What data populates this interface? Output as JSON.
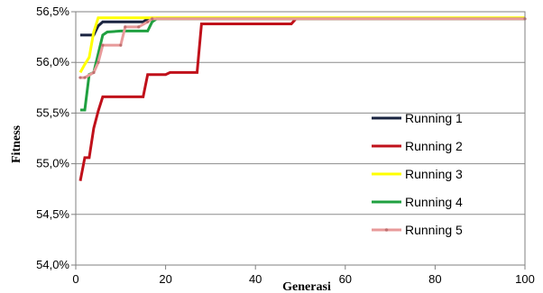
{
  "chart_data": {
    "type": "line",
    "xlabel": "Generasi",
    "ylabel": "Fitness",
    "xlim": [
      0,
      100
    ],
    "ylim": [
      54.0,
      56.5
    ],
    "x_ticks": [
      "0",
      "20",
      "40",
      "60",
      "80",
      "100"
    ],
    "y_ticks": [
      "54,0%",
      "54,5%",
      "55,0%",
      "55,5%",
      "56,0%",
      "56,5%"
    ],
    "grid": "horizontal",
    "legend_position": "right",
    "series": [
      {
        "name": "Running 1",
        "color": "#1a2440",
        "points": [
          [
            1,
            56.27
          ],
          [
            4,
            56.27
          ],
          [
            5,
            56.36
          ],
          [
            6,
            56.4
          ],
          [
            15,
            56.4
          ],
          [
            16,
            56.43
          ],
          [
            100,
            56.43
          ]
        ]
      },
      {
        "name": "Running 2",
        "color": "#c0101a",
        "points": [
          [
            1,
            54.83
          ],
          [
            2,
            55.06
          ],
          [
            3,
            55.06
          ],
          [
            4,
            55.35
          ],
          [
            5,
            55.52
          ],
          [
            6,
            55.66
          ],
          [
            15,
            55.66
          ],
          [
            16,
            55.88
          ],
          [
            20,
            55.88
          ],
          [
            21,
            55.9
          ],
          [
            27,
            55.9
          ],
          [
            28,
            56.38
          ],
          [
            48,
            56.38
          ],
          [
            49,
            56.43
          ],
          [
            100,
            56.43
          ]
        ]
      },
      {
        "name": "Running 3",
        "color": "#ffff00",
        "points": [
          [
            1,
            55.9
          ],
          [
            2,
            55.98
          ],
          [
            3,
            56.05
          ],
          [
            4,
            56.3
          ],
          [
            5,
            56.44
          ],
          [
            100,
            56.44
          ]
        ]
      },
      {
        "name": "Running 4",
        "color": "#20a040",
        "points": [
          [
            1,
            55.53
          ],
          [
            2,
            55.53
          ],
          [
            3,
            55.88
          ],
          [
            4,
            55.9
          ],
          [
            6,
            56.27
          ],
          [
            7,
            56.3
          ],
          [
            10,
            56.31
          ],
          [
            16,
            56.31
          ],
          [
            17,
            56.4
          ],
          [
            18,
            56.43
          ],
          [
            100,
            56.43
          ]
        ]
      },
      {
        "name": "Running 5",
        "color": "#e89a9a",
        "points": [
          [
            1,
            55.85
          ],
          [
            2,
            55.85
          ],
          [
            4,
            55.9
          ],
          [
            5,
            56.0
          ],
          [
            6,
            56.17
          ],
          [
            10,
            56.17
          ],
          [
            11,
            56.35
          ],
          [
            14,
            56.35
          ],
          [
            16,
            56.4
          ],
          [
            17,
            56.43
          ],
          [
            100,
            56.43
          ]
        ]
      }
    ]
  }
}
